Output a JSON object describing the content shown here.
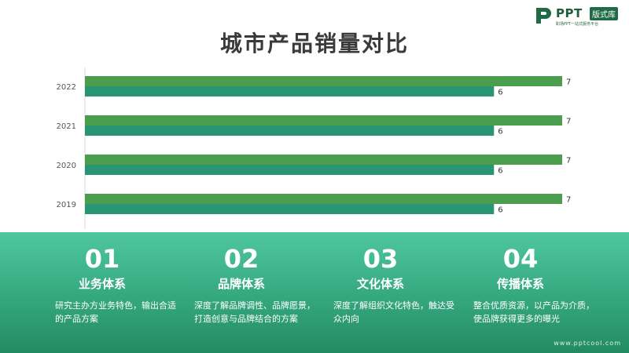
{
  "header": {
    "logo_word": "PPT",
    "logo_badge": "版式库",
    "logo_sub": "职场PPT一站式服务平台",
    "title": "城市产品销量对比"
  },
  "chart_data": {
    "type": "bar",
    "orientation": "horizontal",
    "title": "",
    "xlabel": "",
    "ylabel": "",
    "categories": [
      "2022",
      "2021",
      "2020",
      "2019"
    ],
    "series": [
      {
        "values": [
          7,
          7,
          7,
          7
        ],
        "color": "#4a9e4e"
      },
      {
        "values": [
          6,
          6,
          6,
          6
        ],
        "color": "#2a9574"
      }
    ],
    "xlim": [
      0,
      7
    ],
    "grid": false,
    "legend": "none",
    "data_labels": true
  },
  "items": [
    {
      "num": "01",
      "name": "业务体系",
      "desc": "研究主办方业务特色，输出合适的产品方案"
    },
    {
      "num": "02",
      "name": "品牌体系",
      "desc": "深度了解品牌调性、品牌愿景，打造创意与品牌结合的方案"
    },
    {
      "num": "03",
      "name": "文化体系",
      "desc": "深度了解组织文化特色，触达受众内向"
    },
    {
      "num": "04",
      "name": "传播体系",
      "desc": "整合优质资源，以产品为介质，使品牌获得更多的曝光"
    }
  ],
  "footer": {
    "site": "www.pptcool.com"
  },
  "colors": {
    "bar_primary": "#4a9e4e",
    "bar_secondary": "#2a9574",
    "panel_top": "#4fc79e",
    "panel_bottom": "#238b62"
  }
}
